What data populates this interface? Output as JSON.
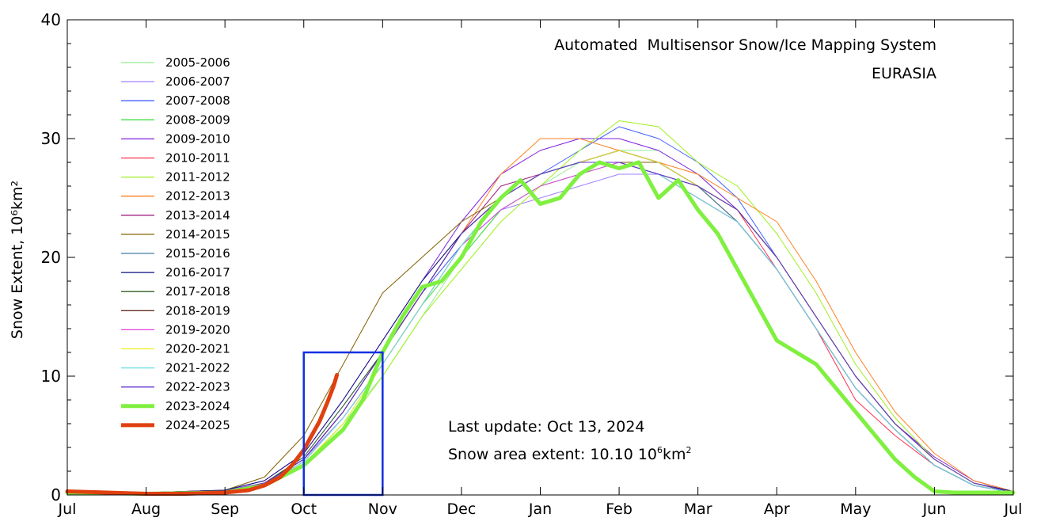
{
  "chart_data": {
    "type": "line",
    "title": "Automated  Multisensor Snow/Ice Mapping System",
    "subtitle": "EURASIA",
    "xlabel": "",
    "ylabel": "Snow Extent, 10⁶km²",
    "ylim": [
      0,
      40
    ],
    "xlim": [
      0,
      12
    ],
    "yticks": [
      0,
      10,
      20,
      30,
      40
    ],
    "xtick_labels": [
      "Jul",
      "Aug",
      "Sep",
      "Oct",
      "Nov",
      "Dec",
      "Jan",
      "Feb",
      "Mar",
      "Apr",
      "May",
      "Jun",
      "Jul"
    ],
    "x_units": "months since Jul 1",
    "annotations": {
      "last_update": "Last update: Oct 13, 2024",
      "snow_area_prefix": "Snow area extent: 10.10 10",
      "snow_area_sup": "6",
      "snow_area_suffix": "km",
      "snow_area_sup2": "2"
    },
    "highlight_box": {
      "x_range": [
        3.0,
        4.0
      ],
      "y_range": [
        0,
        12
      ]
    },
    "series": [
      {
        "name": "2005-2006",
        "color": "#90ee90",
        "width": 1,
        "x": [
          0,
          1,
          2,
          2.5,
          3,
          3.5,
          4,
          4.5,
          5,
          5.5,
          6,
          6.5,
          7,
          7.5,
          8,
          8.5,
          9,
          9.5,
          10,
          10.5,
          11,
          11.5,
          12
        ],
        "y": [
          0.3,
          0.2,
          0.3,
          0.8,
          2.5,
          6,
          10,
          15,
          20,
          24,
          26,
          28,
          29,
          29,
          27,
          24,
          20,
          15,
          10,
          6,
          3,
          1,
          0.2
        ]
      },
      {
        "name": "2006-2007",
        "color": "#a080ff",
        "width": 1,
        "x": [
          0,
          1,
          2,
          2.5,
          3,
          3.5,
          4,
          4.5,
          5,
          5.5,
          6,
          6.5,
          7,
          7.5,
          8,
          8.5,
          9,
          9.5,
          10,
          10.5,
          11,
          11.5,
          12
        ],
        "y": [
          0.3,
          0.2,
          0.4,
          1,
          3,
          6.5,
          11,
          16,
          21,
          24,
          25,
          26,
          27,
          27,
          25,
          23,
          19,
          14,
          9,
          5.5,
          2.5,
          0.8,
          0.2
        ]
      },
      {
        "name": "2007-2008",
        "color": "#4060ff",
        "width": 1,
        "x": [
          0,
          1,
          2,
          2.5,
          3,
          3.5,
          4,
          4.5,
          5,
          5.5,
          6,
          6.5,
          7,
          7.5,
          8,
          8.5,
          9,
          9.5,
          10,
          10.5,
          11,
          11.5,
          12
        ],
        "y": [
          0.4,
          0.2,
          0.3,
          0.9,
          3.2,
          7.5,
          12,
          17,
          21,
          25,
          27,
          29,
          31,
          30,
          28,
          25,
          20,
          15,
          10,
          6,
          3,
          1,
          0.3
        ]
      },
      {
        "name": "2008-2009",
        "color": "#40e040",
        "width": 1,
        "x": [
          0,
          1,
          2,
          2.5,
          3,
          3.5,
          4,
          4.5,
          5,
          5.5,
          6,
          6.5,
          7,
          7.5,
          8,
          8.5,
          9,
          9.5,
          10,
          10.5,
          11,
          11.5,
          12
        ],
        "y": [
          0.3,
          0.2,
          0.3,
          0.8,
          2.6,
          6,
          11,
          16,
          20,
          24,
          26,
          27,
          28,
          28,
          26,
          24,
          20,
          15,
          10,
          6,
          3,
          1,
          0.2
        ]
      },
      {
        "name": "2009-2010",
        "color": "#8020e0",
        "width": 1,
        "x": [
          0,
          1,
          2,
          2.5,
          3,
          3.5,
          4,
          4.5,
          5,
          5.5,
          6,
          6.5,
          7,
          7.5,
          8,
          8.5,
          9,
          9.5,
          10,
          10.5,
          11,
          11.5,
          12
        ],
        "y": [
          0.3,
          0.2,
          0.4,
          1.2,
          3.5,
          8,
          13,
          18,
          23,
          27,
          29,
          30,
          30,
          29,
          27,
          24,
          20,
          15,
          10,
          6,
          3.2,
          1.2,
          0.3
        ]
      },
      {
        "name": "2010-2011",
        "color": "#ff3050",
        "width": 1,
        "x": [
          0,
          1,
          2,
          2.5,
          3,
          3.5,
          4,
          4.5,
          5,
          5.5,
          6,
          6.5,
          7,
          7.5,
          8,
          8.5,
          9,
          9.5,
          10,
          10.5,
          11,
          11.5,
          12
        ],
        "y": [
          0.3,
          0.2,
          0.3,
          0.9,
          2.8,
          6.5,
          11,
          16,
          21,
          25,
          27,
          28,
          29,
          28,
          26,
          24,
          19,
          14,
          8,
          5,
          2.5,
          0.8,
          0.2
        ]
      },
      {
        "name": "2011-2012",
        "color": "#a0f020",
        "width": 1,
        "x": [
          0,
          1,
          2,
          2.5,
          3,
          3.5,
          4,
          4.5,
          5,
          5.5,
          6,
          6.5,
          7,
          7.5,
          8,
          8.5,
          9,
          9.5,
          10,
          10.5,
          11,
          11.5,
          12
        ],
        "y": [
          0.3,
          0.2,
          0.3,
          0.8,
          2.5,
          5.5,
          10,
          15,
          19,
          23,
          26,
          29,
          31.5,
          31,
          28,
          26,
          22,
          17,
          11,
          6.5,
          3,
          1,
          0.2
        ]
      },
      {
        "name": "2012-2013",
        "color": "#ff8020",
        "width": 1,
        "x": [
          0,
          1,
          2,
          2.5,
          3,
          3.5,
          4,
          4.5,
          5,
          5.5,
          6,
          6.5,
          7,
          7.5,
          8,
          8.5,
          9,
          9.5,
          10,
          10.5,
          11,
          11.5,
          12
        ],
        "y": [
          0.3,
          0.2,
          0.3,
          1,
          3,
          7,
          12,
          17,
          22,
          27,
          30,
          30,
          29,
          28,
          27,
          25,
          23,
          18,
          12,
          7,
          3.5,
          1.2,
          0.3
        ]
      },
      {
        "name": "2013-2014",
        "color": "#a02080",
        "width": 1,
        "x": [
          0,
          1,
          2,
          2.5,
          3,
          3.5,
          4,
          4.5,
          5,
          5.5,
          6,
          6.5,
          7,
          7.5,
          8,
          8.5,
          9,
          9.5,
          10,
          10.5,
          11,
          11.5,
          12
        ],
        "y": [
          0.3,
          0.2,
          0.3,
          1,
          3,
          7,
          12,
          17,
          22,
          26,
          27,
          28,
          29,
          28,
          26,
          23,
          19,
          14,
          9,
          5.5,
          2.5,
          0.8,
          0.2
        ]
      },
      {
        "name": "2014-2015",
        "color": "#806000",
        "width": 1,
        "x": [
          0,
          1,
          2,
          2.5,
          3,
          3.5,
          4,
          4.5,
          5,
          5.5,
          6,
          6.5,
          7,
          7.5,
          8,
          8.5,
          9,
          9.5,
          10,
          10.5,
          11,
          11.5,
          12
        ],
        "y": [
          0.3,
          0.2,
          0.4,
          1.5,
          5,
          11,
          17,
          20,
          23,
          25,
          27,
          28,
          28,
          28,
          26,
          23,
          19,
          14,
          9,
          5.5,
          2.5,
          0.8,
          0.2
        ]
      },
      {
        "name": "2015-2016",
        "color": "#4080a0",
        "width": 1,
        "x": [
          0,
          1,
          2,
          2.5,
          3,
          3.5,
          4,
          4.5,
          5,
          5.5,
          6,
          6.5,
          7,
          7.5,
          8,
          8.5,
          9,
          9.5,
          10,
          10.5,
          11,
          11.5,
          12
        ],
        "y": [
          0.3,
          0.2,
          0.3,
          0.9,
          3,
          7,
          12,
          17,
          22,
          25,
          27,
          28,
          29,
          28,
          26,
          23,
          19,
          14,
          9,
          5.5,
          2.5,
          0.8,
          0.2
        ]
      },
      {
        "name": "2016-2017",
        "color": "#101080",
        "width": 1,
        "x": [
          0,
          1,
          2,
          2.5,
          3,
          3.5,
          4,
          4.5,
          5,
          5.5,
          6,
          6.5,
          7,
          7.5,
          8,
          8.5,
          9,
          9.5,
          10,
          10.5,
          11,
          11.5,
          12
        ],
        "y": [
          0.3,
          0.2,
          0.4,
          1.2,
          3.5,
          8,
          13,
          18,
          22,
          25,
          27,
          28,
          29,
          28,
          26,
          24,
          20,
          15,
          10,
          6,
          3,
          1,
          0.3
        ]
      },
      {
        "name": "2017-2018",
        "color": "#306020",
        "width": 1,
        "x": [
          0,
          1,
          2,
          2.5,
          3,
          3.5,
          4,
          4.5,
          5,
          5.5,
          6,
          6.5,
          7,
          7.5,
          8,
          8.5,
          9,
          9.5,
          10,
          10.5,
          11,
          11.5,
          12
        ],
        "y": [
          0.3,
          0.2,
          0.3,
          1,
          3.2,
          7.5,
          12,
          17,
          22,
          25,
          27,
          28,
          28,
          27,
          26,
          24,
          20,
          15,
          10,
          6,
          3,
          1,
          0.2
        ]
      },
      {
        "name": "2018-2019",
        "color": "#603020",
        "width": 1,
        "x": [
          0,
          1,
          2,
          2.5,
          3,
          3.5,
          4,
          4.5,
          5,
          5.5,
          6,
          6.5,
          7,
          7.5,
          8,
          8.5,
          9,
          9.5,
          10,
          10.5,
          11,
          11.5,
          12
        ],
        "y": [
          0.3,
          0.2,
          0.3,
          1,
          3,
          7,
          12,
          17,
          22,
          25,
          27,
          28,
          28,
          27,
          25,
          23,
          19,
          14,
          9,
          5.5,
          2.5,
          0.8,
          0.2
        ]
      },
      {
        "name": "2019-2020",
        "color": "#e040e0",
        "width": 1,
        "x": [
          0,
          1,
          2,
          2.5,
          3,
          3.5,
          4,
          4.5,
          5,
          5.5,
          6,
          6.5,
          7,
          7.5,
          8,
          8.5,
          9,
          9.5,
          10,
          10.5,
          11,
          11.5,
          12
        ],
        "y": [
          0.3,
          0.2,
          0.3,
          0.9,
          2.8,
          6.5,
          11,
          16,
          21,
          24,
          26,
          27,
          28,
          27,
          25,
          23,
          19,
          14,
          9,
          5.5,
          2.5,
          0.8,
          0.2
        ]
      },
      {
        "name": "2020-2021",
        "color": "#f0f020",
        "width": 1,
        "x": [
          0,
          1,
          2,
          2.5,
          3,
          3.5,
          4,
          4.5,
          5,
          5.5,
          6,
          6.5,
          7,
          7.5,
          8,
          8.5,
          9,
          9.5,
          10,
          10.5,
          11,
          11.5,
          12
        ],
        "y": [
          0.3,
          0.2,
          0.3,
          0.8,
          2.6,
          6,
          11,
          16,
          21,
          25,
          27,
          28,
          29,
          28,
          26,
          24,
          20,
          15,
          10,
          6,
          3,
          1,
          0.2
        ]
      },
      {
        "name": "2021-2022",
        "color": "#60e0e0",
        "width": 1,
        "x": [
          0,
          1,
          2,
          2.5,
          3,
          3.5,
          4,
          4.5,
          5,
          5.5,
          6,
          6.5,
          7,
          7.5,
          8,
          8.5,
          9,
          9.5,
          10,
          10.5,
          11,
          11.5,
          12
        ],
        "y": [
          0.3,
          0.2,
          0.3,
          0.9,
          2.8,
          6.5,
          11,
          16,
          21,
          25,
          27,
          28,
          28,
          27,
          25,
          23,
          19,
          14,
          9,
          5.5,
          2.5,
          0.8,
          0.2
        ]
      },
      {
        "name": "2022-2023",
        "color": "#6030d0",
        "width": 1,
        "x": [
          0,
          1,
          2,
          2.5,
          3,
          3.5,
          4,
          4.5,
          5,
          5.5,
          6,
          6.5,
          7,
          7.5,
          8,
          8.5,
          9,
          9.5,
          10,
          10.5,
          11,
          11.5,
          12
        ],
        "y": [
          0.3,
          0.2,
          0.3,
          1,
          3,
          7,
          12,
          17,
          22,
          25,
          27,
          28,
          28,
          27,
          26,
          24,
          20,
          15,
          10,
          6,
          3,
          1,
          0.2
        ]
      },
      {
        "name": "2023-2024",
        "color": "#80f040",
        "width": 5,
        "x": [
          0,
          1,
          2,
          2.5,
          3,
          3.25,
          3.5,
          3.75,
          4,
          4.25,
          4.5,
          4.75,
          5,
          5.25,
          5.5,
          5.75,
          6,
          6.25,
          6.5,
          6.75,
          7,
          7.25,
          7.5,
          7.75,
          8,
          8.25,
          8.5,
          8.75,
          9,
          9.25,
          9.5,
          9.75,
          10,
          10.25,
          10.5,
          10.75,
          11,
          11.25,
          11.5,
          11.75,
          12
        ],
        "y": [
          0.2,
          0.1,
          0.2,
          0.8,
          2.5,
          4,
          5.5,
          8,
          12,
          15,
          17.5,
          18,
          20,
          23,
          25,
          26.5,
          24.5,
          25,
          27,
          28,
          27.5,
          28,
          25,
          26.5,
          24,
          22,
          19,
          16,
          13,
          12,
          11,
          9,
          7,
          5,
          3,
          1.5,
          0.3,
          0.2,
          0.2,
          0.2,
          0.2
        ]
      },
      {
        "name": "2024-2025",
        "color": "#e04010",
        "width": 5,
        "x": [
          0,
          0.5,
          1,
          1.5,
          2,
          2.3,
          2.5,
          2.7,
          2.85,
          3,
          3.1,
          3.2,
          3.3,
          3.38,
          3.42
        ],
        "y": [
          0.3,
          0.2,
          0.1,
          0.1,
          0.2,
          0.4,
          0.8,
          1.5,
          2.5,
          3.8,
          5,
          6.2,
          7.8,
          9.2,
          10.1
        ]
      }
    ]
  }
}
